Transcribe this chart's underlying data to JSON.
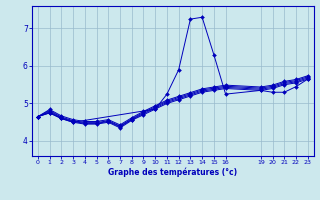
{
  "background_color": "#cce8ed",
  "line_color": "#0000bb",
  "grid_color": "#99bbcc",
  "xlabel": "Graphe des températures (°c)",
  "xlabel_color": "#0000bb",
  "ylabel_color": "#0000bb",
  "xlim": [
    -0.5,
    23.5
  ],
  "ylim": [
    3.6,
    7.6
  ],
  "yticks": [
    4,
    5,
    6,
    7
  ],
  "xticks": [
    0,
    1,
    2,
    3,
    4,
    5,
    6,
    7,
    8,
    9,
    10,
    11,
    12,
    13,
    14,
    15,
    16,
    19,
    20,
    21,
    22,
    23
  ],
  "series": [
    {
      "x": [
        0,
        1,
        2,
        3,
        10,
        11,
        12,
        13,
        14,
        15,
        16,
        19,
        20,
        21,
        22,
        23
      ],
      "y": [
        4.65,
        4.75,
        4.6,
        4.5,
        4.85,
        5.25,
        5.9,
        7.25,
        7.3,
        6.3,
        5.25,
        5.35,
        5.3,
        5.3,
        5.45,
        5.65
      ]
    },
    {
      "x": [
        0,
        1,
        2,
        3,
        4,
        5,
        6,
        7,
        8,
        9,
        10,
        11,
        12,
        13,
        14,
        15,
        16,
        19,
        20,
        21,
        22,
        23
      ],
      "y": [
        4.65,
        4.75,
        4.6,
        4.5,
        4.45,
        4.45,
        4.5,
        4.35,
        4.55,
        4.7,
        4.85,
        5.0,
        5.1,
        5.2,
        5.3,
        5.35,
        5.4,
        5.35,
        5.4,
        5.5,
        5.55,
        5.65
      ]
    },
    {
      "x": [
        0,
        1,
        2,
        3,
        4,
        5,
        6,
        7,
        8,
        9,
        10,
        11,
        12,
        13,
        14,
        15,
        16,
        19,
        20,
        21,
        22,
        23
      ],
      "y": [
        4.65,
        4.78,
        4.62,
        4.52,
        4.47,
        4.47,
        4.52,
        4.38,
        4.57,
        4.73,
        4.88,
        5.03,
        5.13,
        5.23,
        5.33,
        5.38,
        5.43,
        5.38,
        5.43,
        5.53,
        5.58,
        5.68
      ]
    },
    {
      "x": [
        0,
        1,
        2,
        3,
        4,
        5,
        6,
        7,
        8,
        9,
        10,
        11,
        12,
        13,
        14,
        15,
        16,
        19,
        20,
        21,
        22,
        23
      ],
      "y": [
        4.65,
        4.81,
        4.64,
        4.54,
        4.49,
        4.49,
        4.54,
        4.4,
        4.59,
        4.76,
        4.91,
        5.06,
        5.16,
        5.26,
        5.36,
        5.41,
        5.46,
        5.41,
        5.46,
        5.56,
        5.61,
        5.71
      ]
    },
    {
      "x": [
        0,
        1,
        2,
        3,
        4,
        5,
        6,
        7,
        8,
        9,
        10,
        11,
        12,
        13,
        14,
        15,
        16,
        19,
        20,
        21,
        22,
        23
      ],
      "y": [
        4.65,
        4.84,
        4.67,
        4.57,
        4.52,
        4.52,
        4.57,
        4.43,
        4.62,
        4.79,
        4.94,
        5.09,
        5.19,
        5.29,
        5.39,
        5.44,
        5.49,
        5.44,
        5.49,
        5.59,
        5.64,
        5.74
      ]
    }
  ]
}
